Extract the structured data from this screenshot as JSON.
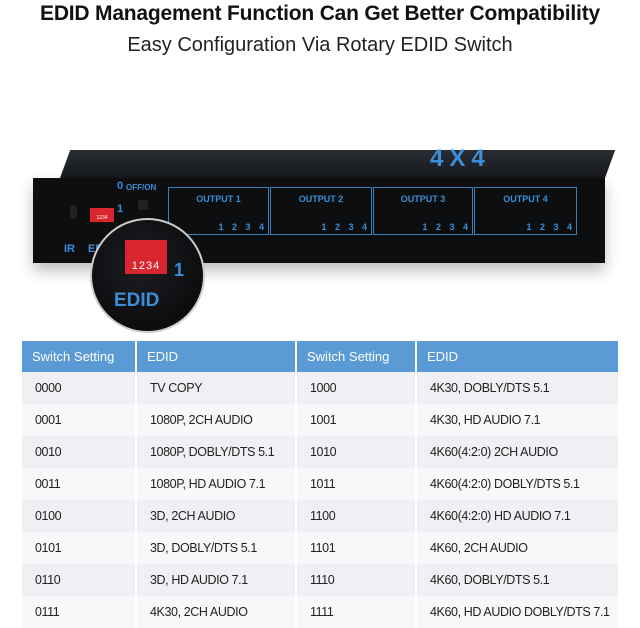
{
  "title": "EDID Management Function Can Get Better Compatibility",
  "subtitle": "Easy Configuration Via Rotary EDID Switch",
  "device": {
    "model_label": "4X4",
    "labels": {
      "ir": "IR",
      "edid": "EDID",
      "off_on": "OFF/ON",
      "zero": "0",
      "one": "1",
      "dip_numbers": "1234"
    },
    "outputs": [
      {
        "label": "OUTPUT 1",
        "ports": "1 2 3 4"
      },
      {
        "label": "OUTPUT 2",
        "ports": "1 2 3 4"
      },
      {
        "label": "OUTPUT 3",
        "ports": "1 2 3 4"
      },
      {
        "label": "OUTPUT 4",
        "ports": "1 2 3 4"
      }
    ],
    "magnifier": {
      "dip_numbers": "1234",
      "one": "1",
      "edid": "EDID"
    },
    "accent_color": "#3a8fd8",
    "dip_color": "#d8252e"
  },
  "table": {
    "headers": [
      "Switch Setting",
      "EDID",
      "Switch Setting",
      "EDID"
    ],
    "header_color": "#5b9bd5",
    "rows": [
      [
        "0000",
        "TV COPY",
        "1000",
        "4K30, DOBLY/DTS 5.1"
      ],
      [
        "0001",
        "1080P, 2CH AUDIO",
        "1001",
        "4K30, HD AUDIO 7.1"
      ],
      [
        "0010",
        "1080P, DOBLY/DTS 5.1",
        "1010",
        "4K60(4:2:0) 2CH AUDIO"
      ],
      [
        "0011",
        "1080P, HD AUDIO 7.1",
        "1011",
        "4K60(4:2:0) DOBLY/DTS 5.1"
      ],
      [
        "0100",
        "3D, 2CH AUDIO",
        "1100",
        "4K60(4:2:0) HD AUDIO 7.1"
      ],
      [
        "0101",
        "3D, DOBLY/DTS 5.1",
        "1101",
        "4K60, 2CH AUDIO"
      ],
      [
        "0110",
        "3D, HD AUDIO 7.1",
        "1110",
        "4K60, DOBLY/DTS 5.1"
      ],
      [
        "0111",
        "4K30, 2CH AUDIO",
        "1111",
        "4K60, HD AUDIO DOBLY/DTS 7.1"
      ]
    ]
  }
}
